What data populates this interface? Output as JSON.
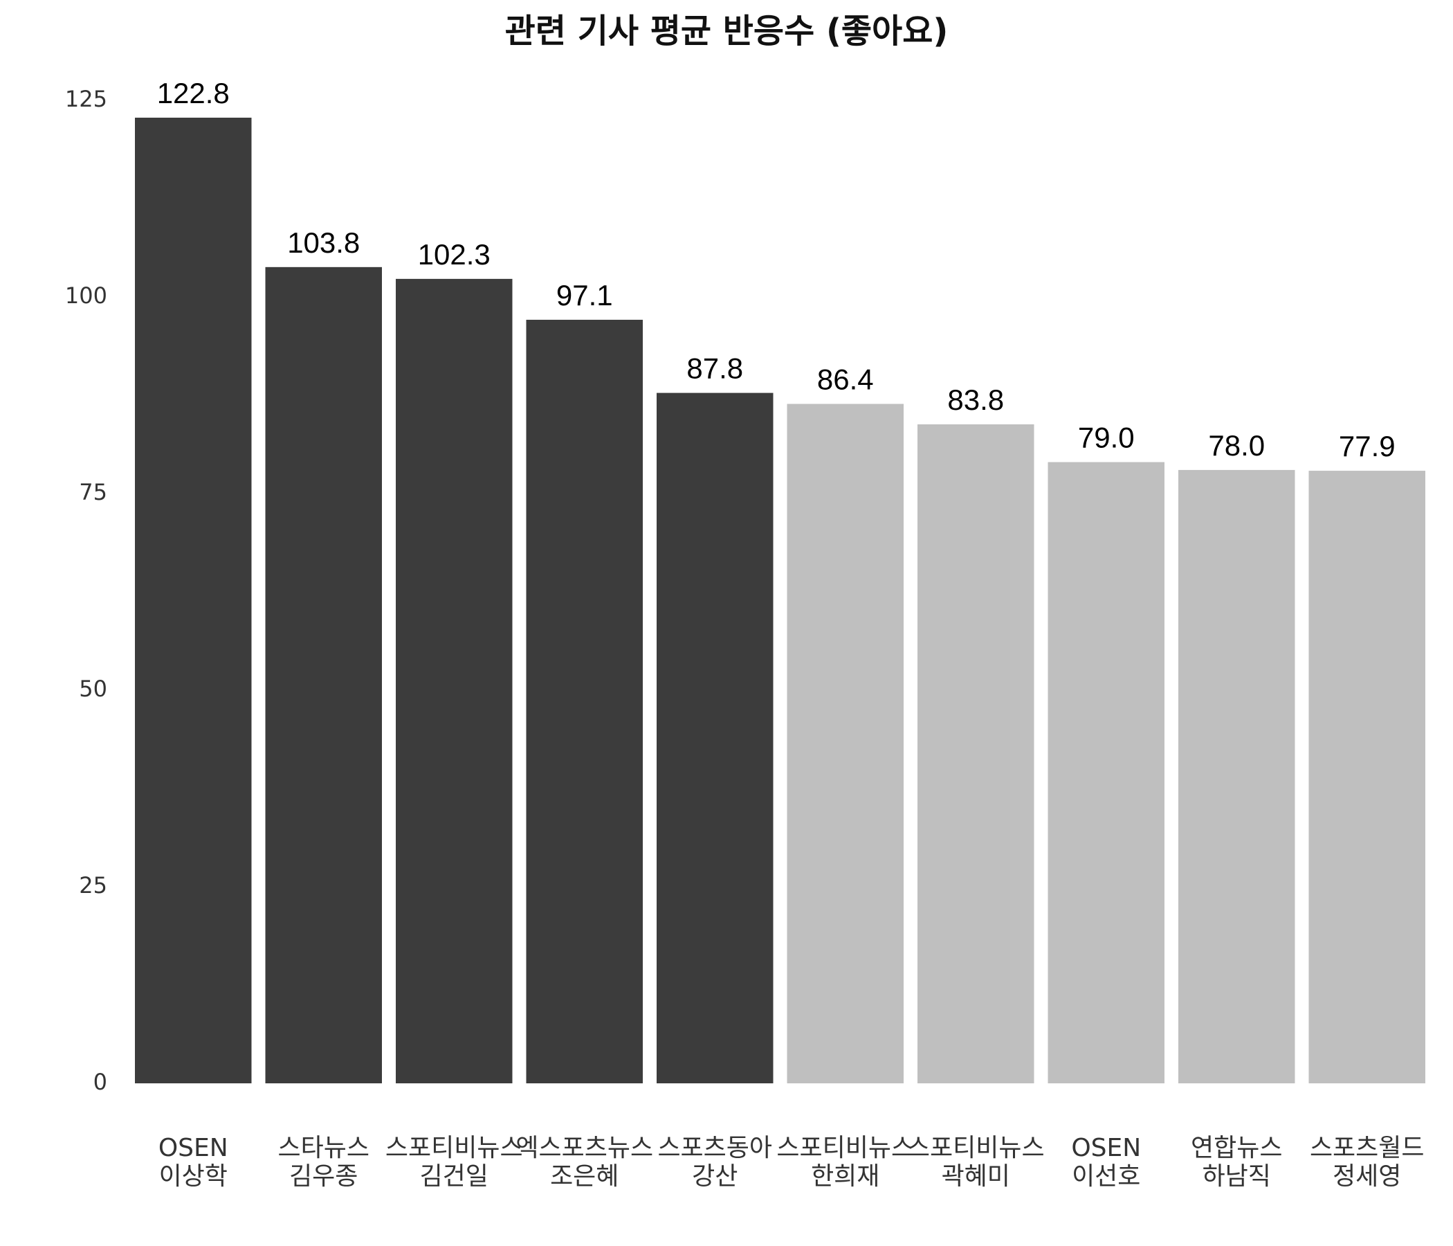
{
  "chart_data": {
    "type": "bar",
    "title": "관련 기사 평균 반응수 (좋아요)",
    "categories": [
      "OSEN\n이상학",
      "스타뉴스\n김우종",
      "스포티비뉴스\n김건일",
      "엑스포츠뉴스\n조은혜",
      "스포츠동아\n강산",
      "스포티비뉴스\n한희재",
      "스포티비뉴스\n곽혜미",
      "OSEN\n이선호",
      "연합뉴스\n하남직",
      "스포츠월드\n정세영"
    ],
    "values": [
      122.8,
      103.8,
      102.3,
      97.1,
      87.8,
      86.4,
      83.8,
      79.0,
      78.0,
      77.9
    ],
    "value_labels": [
      "122.8",
      "103.8",
      "102.3",
      "97.1",
      "87.8",
      "86.4",
      "83.8",
      "79.0",
      "78.0",
      "77.9"
    ],
    "colors": [
      "#3c3c3c",
      "#3c3c3c",
      "#3c3c3c",
      "#3c3c3c",
      "#3c3c3c",
      "#bfbfbf",
      "#bfbfbf",
      "#bfbfbf",
      "#bfbfbf",
      "#bfbfbf"
    ],
    "ylim": [
      0,
      125
    ],
    "yticks": [
      0,
      25,
      50,
      75,
      100,
      125
    ],
    "grid": false
  }
}
